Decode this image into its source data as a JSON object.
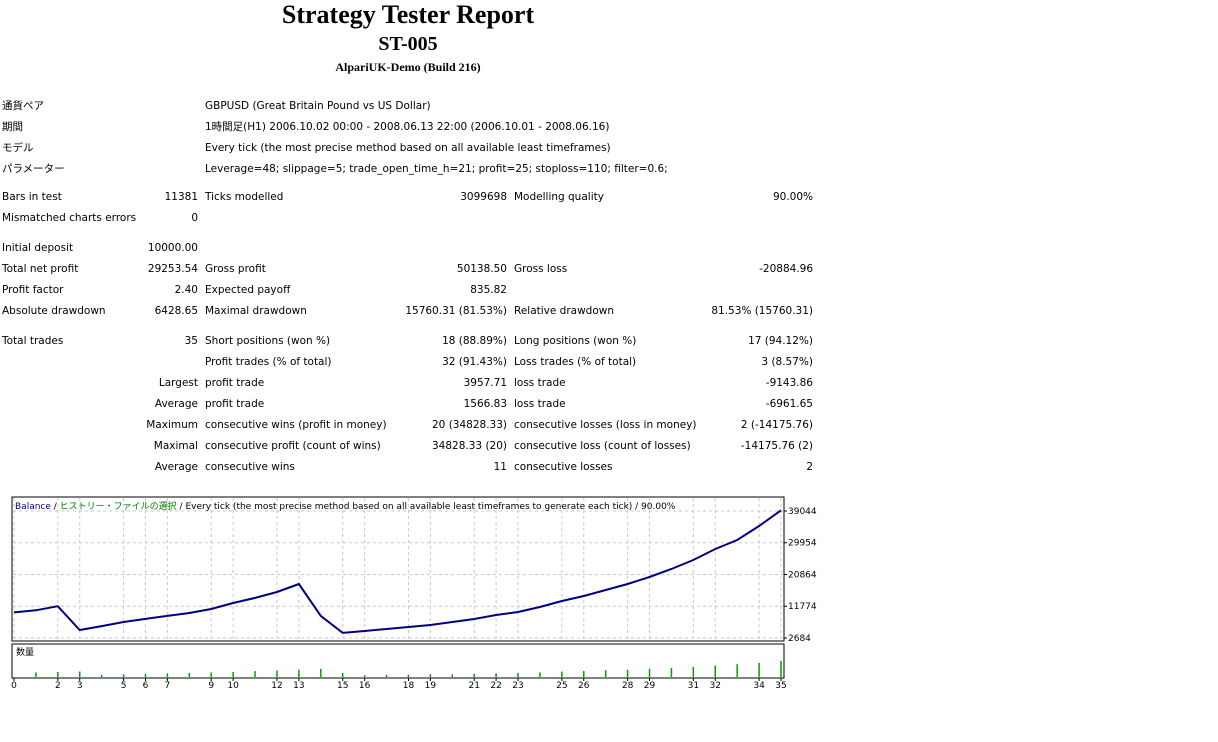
{
  "header": {
    "title": "Strategy Tester Report",
    "subtitle": "ST-005",
    "server": "AlpariUK-Demo (Build 216)"
  },
  "settings": [
    {
      "label": "通貨ペア",
      "value": "GBPUSD (Great Britain Pound vs US Dollar)"
    },
    {
      "label": "期間",
      "value": "1時間足(H1) 2006.10.02 00:00 - 2008.06.13 22:00 (2006.10.01 - 2008.06.16)"
    },
    {
      "label": "モデル",
      "value": "Every tick (the most precise method based on all available least timeframes)"
    },
    {
      "label": "パラメーター",
      "value": "Leverage=48; slippage=5; trade_open_time_h=21; profit=25; stoploss=110; filter=0.6;"
    }
  ],
  "stats": [
    [
      "Bars in test",
      "11381",
      "Ticks modelled",
      "3099698",
      "Modelling quality",
      "90.00%"
    ],
    [
      "Mismatched charts errors",
      "0",
      null,
      null,
      null,
      null
    ],
    [
      "Initial deposit",
      "10000.00",
      null,
      null,
      null,
      null
    ],
    [
      "Total net profit",
      "29253.54",
      "Gross profit",
      "50138.50",
      "Gross loss",
      "-20884.96"
    ],
    [
      "Profit factor",
      "2.40",
      "Expected payoff",
      "835.82",
      null,
      null
    ],
    [
      "Absolute drawdown",
      "6428.65",
      "Maximal drawdown",
      "15760.31 (81.53%)",
      "Relative drawdown",
      "81.53% (15760.31)"
    ],
    [
      "Total trades",
      "35",
      "Short positions (won %)",
      "18 (88.89%)",
      "Long positions (won %)",
      "17 (94.12%)"
    ],
    [
      null,
      null,
      "Profit trades (% of total)",
      "32 (91.43%)",
      "Loss trades (% of total)",
      "3 (8.57%)"
    ],
    [
      null,
      "Largest",
      "profit trade",
      "3957.71",
      "loss trade",
      "-9143.86"
    ],
    [
      null,
      "Average",
      "profit trade",
      "1566.83",
      "loss trade",
      "-6961.65"
    ],
    [
      null,
      "Maximum",
      "consecutive wins (profit in money)",
      "20 (34828.33)",
      "consecutive losses (loss in money)",
      "2 (-14175.76)"
    ],
    [
      null,
      "Maximal",
      "consecutive profit (count of wins)",
      "34828.33 (20)",
      "consecutive loss (count of losses)",
      "-14175.76 (2)"
    ],
    [
      null,
      "Average",
      "consecutive wins",
      "11",
      "consecutive losses",
      "2"
    ]
  ],
  "chart_data": {
    "type": "line",
    "legend": [
      {
        "text": "Balance",
        "color": "#000080"
      },
      {
        "text": " / ",
        "color": "#000000"
      },
      {
        "text": "ヒストリー・ファイルの選択",
        "color": "#008000"
      },
      {
        "text": " / Every tick (the most precise method based on all available least timeframes to generate each tick) / 90.00%",
        "color": "#000000"
      }
    ],
    "x": [
      0,
      1,
      2,
      3,
      4,
      5,
      6,
      7,
      8,
      9,
      10,
      11,
      12,
      13,
      14,
      15,
      16,
      17,
      18,
      19,
      20,
      21,
      22,
      23,
      24,
      25,
      26,
      27,
      28,
      29,
      30,
      31,
      32,
      33,
      34,
      35
    ],
    "series": [
      {
        "name": "Balance",
        "color": "#000080",
        "values": [
          10000,
          10600,
          11800,
          4970,
          6100,
          7250,
          8150,
          9000,
          9850,
          11000,
          12700,
          14150,
          15850,
          18150,
          9000,
          4150,
          4690,
          5260,
          5830,
          6400,
          7260,
          8120,
          9270,
          10130,
          11560,
          13280,
          14710,
          16430,
          18140,
          20150,
          22440,
          25020,
          28160,
          30740,
          34750,
          39253.54
        ]
      }
    ],
    "volume": {
      "label": "数量",
      "color": "#00a000",
      "values": [
        null,
        1.0,
        1.1,
        1.2,
        0.5,
        0.6,
        0.7,
        0.8,
        0.9,
        1.0,
        1.1,
        1.3,
        1.4,
        1.6,
        1.8,
        0.9,
        0.4,
        0.5,
        0.5,
        0.6,
        0.6,
        0.7,
        0.8,
        0.9,
        1.0,
        1.2,
        1.3,
        1.5,
        1.6,
        1.8,
        2.0,
        2.2,
        2.5,
        2.8,
        3.1,
        3.5
      ]
    },
    "xlim": [
      0,
      35
    ],
    "xticks": [
      0,
      2,
      3,
      5,
      6,
      7,
      9,
      10,
      12,
      13,
      15,
      16,
      18,
      19,
      21,
      22,
      23,
      25,
      26,
      28,
      29,
      31,
      32,
      34,
      35
    ],
    "ylim": [
      1825,
      42762
    ],
    "yticks": [
      2684,
      11774,
      20864,
      29954,
      39044
    ],
    "grid": true
  }
}
